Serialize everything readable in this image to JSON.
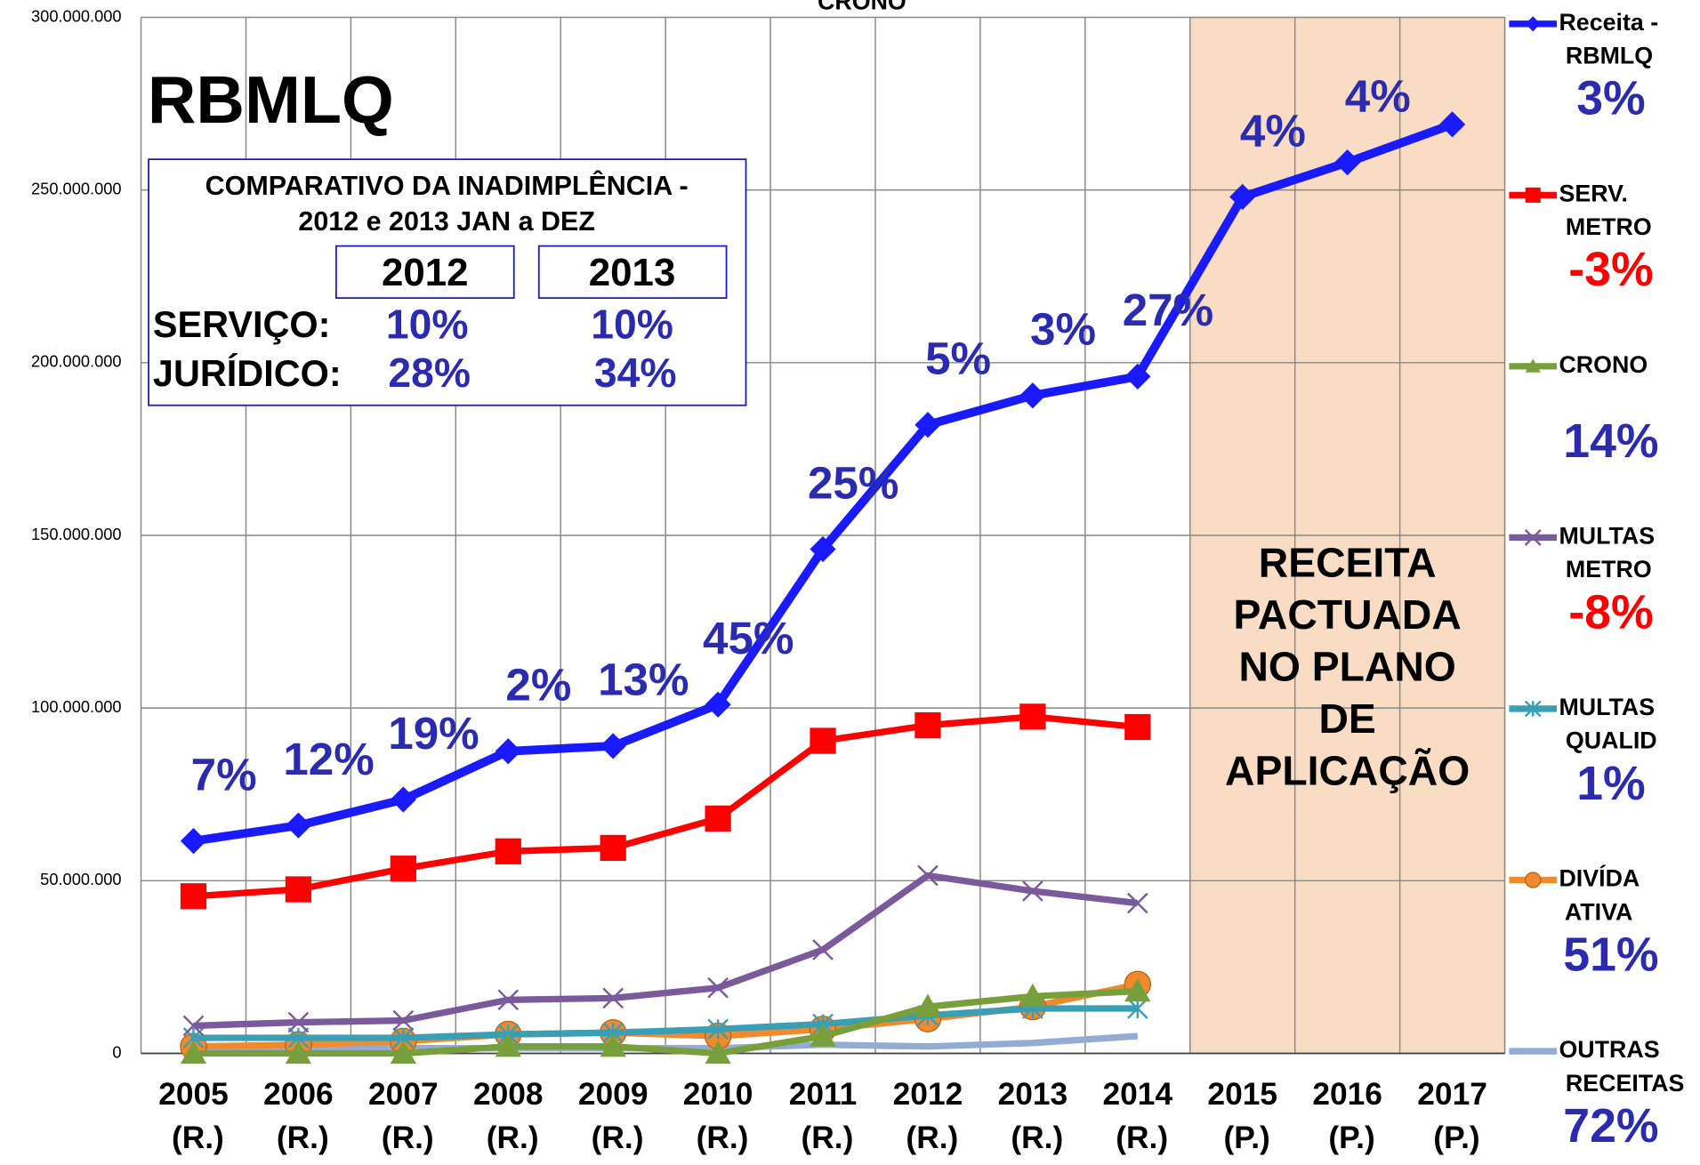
{
  "chart_data": {
    "type": "line",
    "title": "CRONO",
    "big_label": "RBMLQ",
    "categories": [
      "2005 (R.)",
      "2006 (R.)",
      "2007 (R.)",
      "2008 (R.)",
      "2009 (R.)",
      "2010 (R.)",
      "2011 (R.)",
      "2012 (R.)",
      "2013 (R.)",
      "2014 (R.)",
      "2015 (P.)",
      "2016 (P.)",
      "2017 (P.)"
    ],
    "ylim": [
      0,
      300000000
    ],
    "yticks": [
      0,
      {
        "value": 50000000,
        "label": "50.000.000"
      },
      {
        "value": 100000000,
        "label": "100.000.000"
      },
      {
        "value": 150000000,
        "label": "150.000.000"
      },
      {
        "value": 200000000,
        "label": "200.000.000"
      },
      {
        "value": 250000000,
        "label": "250.000.000"
      },
      {
        "value": 300000000,
        "label": "300.000.000"
      }
    ],
    "grid": true,
    "series": [
      {
        "name": "Receita - RBMLQ",
        "color": "#1a1aff",
        "marker": "diamond",
        "legend_value": "3%",
        "legend_value_color": "#2b2bb0",
        "values": [
          61500000,
          66000000,
          73500000,
          87500000,
          89000000,
          101000000,
          146000000,
          182000000,
          190500000,
          196000000,
          248000000,
          258000000,
          269000000
        ]
      },
      {
        "name": "SERV. METRO",
        "color": "#ff0000",
        "marker": "square",
        "legend_value": "-3%",
        "legend_value_color": "#ff0000",
        "values": [
          45500000,
          47500000,
          53500000,
          58500000,
          59500000,
          68000000,
          90500000,
          95000000,
          97500000,
          94500000,
          null,
          null,
          null
        ]
      },
      {
        "name": "CRONO",
        "color": "#77a03c",
        "marker": "triangle",
        "legend_value": "14%",
        "legend_value_color": "#2b2bb0",
        "values": [
          0,
          0,
          0,
          2000000,
          2000000,
          0,
          5000000,
          13500000,
          16500000,
          18000000,
          null,
          null,
          null
        ]
      },
      {
        "name": "MULTAS METRO",
        "color": "#7b5a9c",
        "marker": "x",
        "legend_value": "-8%",
        "legend_value_color": "#ff0000",
        "values": [
          8000000,
          9000000,
          9500000,
          15500000,
          16000000,
          19000000,
          30000000,
          51500000,
          47000000,
          43500000,
          null,
          null,
          null
        ]
      },
      {
        "name": "MULTAS QUALID",
        "color": "#3a9fb5",
        "marker": "star",
        "legend_value": "1%",
        "legend_value_color": "#2b2bb0",
        "values": [
          4500000,
          4500000,
          4500000,
          5500000,
          6000000,
          7000000,
          8500000,
          11000000,
          13000000,
          13000000,
          null,
          null,
          null
        ]
      },
      {
        "name": "DIVÍDA ATIVA",
        "color": "#f08a2c",
        "marker": "circle",
        "legend_value": "51%",
        "legend_value_color": "#2b2bb0",
        "values": [
          2000000,
          2500000,
          3500000,
          5500000,
          6000000,
          5000000,
          7000000,
          10000000,
          13500000,
          20000000,
          null,
          null,
          null
        ]
      },
      {
        "name": "OUTRAS RECEITAS",
        "color": "#94acd4",
        "marker": "none",
        "legend_value": "72%",
        "legend_value_color": "#2b2bb0",
        "values": [
          1500000,
          1500000,
          1500000,
          1500000,
          1500000,
          1500000,
          2500000,
          2000000,
          3000000,
          5000000,
          null,
          null,
          null
        ]
      }
    ],
    "growth_labels": [
      "7%",
      "12%",
      "19%",
      "2%",
      "13%",
      "45%",
      "25%",
      "5%",
      "3%",
      "27%",
      "4%",
      "4%",
      null
    ],
    "projection_note": [
      "RECEITA",
      "PACTUADA",
      "NO PLANO",
      "DE",
      "APLICAÇÃO"
    ],
    "inset": {
      "title_lines": [
        "COMPARATIVO DA INADIMPLÊNCIA -",
        "2012 e 2013 JAN a DEZ"
      ],
      "columns": [
        "2012",
        "2013"
      ],
      "rows": [
        [
          "SERVIÇO:",
          "10%",
          "10%"
        ],
        [
          "JURÍDICO:",
          "28%",
          "34%"
        ]
      ]
    }
  }
}
